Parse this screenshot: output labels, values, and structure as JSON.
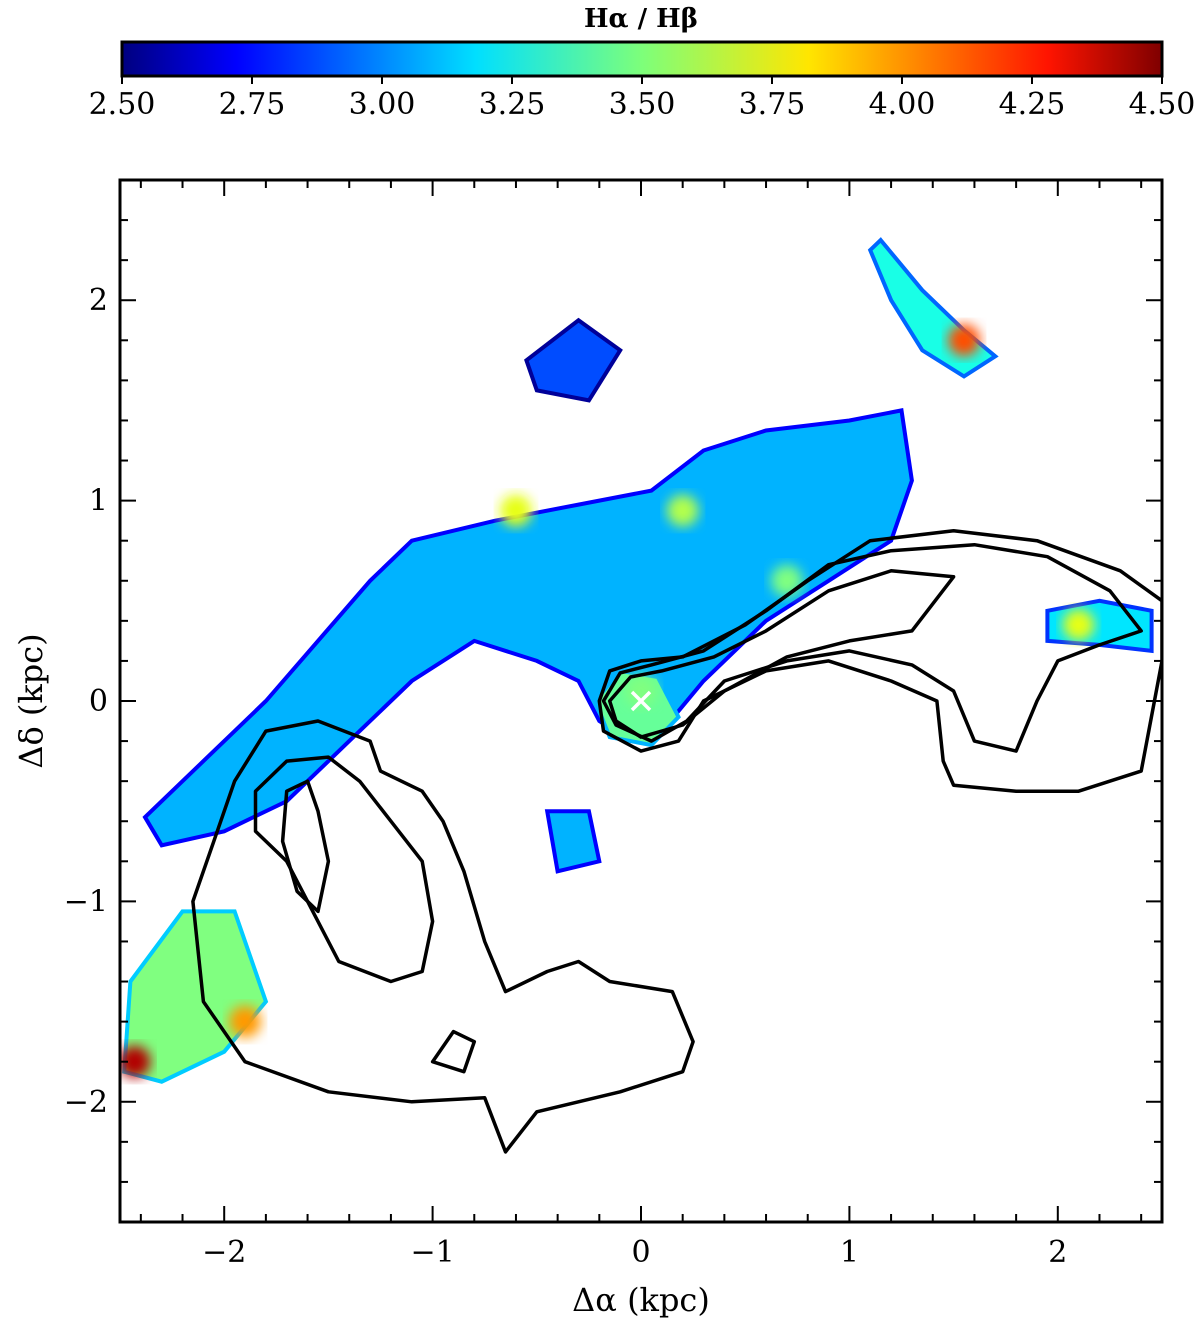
{
  "chart_data": {
    "type": "heatmap",
    "title": "",
    "colorbar": {
      "label": "Hα / Hβ",
      "range": [
        2.5,
        4.5
      ],
      "ticks": [
        "2.50",
        "2.75",
        "3.00",
        "3.25",
        "3.50",
        "3.75",
        "4.00",
        "4.25",
        "4.50"
      ],
      "colormap": "jet",
      "placement": "top"
    },
    "xlabel": "Δα (kpc)",
    "ylabel": "Δδ (kpc)",
    "xlim": [
      -2.5,
      2.5
    ],
    "ylim": [
      -2.6,
      2.6
    ],
    "xticks": [
      {
        "value": -2,
        "label": "−2"
      },
      {
        "value": -1,
        "label": "−1"
      },
      {
        "value": 0,
        "label": "0"
      },
      {
        "value": 1,
        "label": "1"
      },
      {
        "value": 2,
        "label": "2"
      }
    ],
    "yticks": [
      {
        "value": 2,
        "label": "2"
      },
      {
        "value": 1,
        "label": "1"
      },
      {
        "value": 0,
        "label": "0"
      },
      {
        "value": -1,
        "label": "−1"
      },
      {
        "value": -2,
        "label": "−2"
      }
    ],
    "grid": false,
    "center_marker": {
      "x": 0,
      "y": 0,
      "symbol": "×",
      "color": "#ffffff"
    },
    "regions": [
      {
        "name": "main-filament",
        "points": [
          [
            -2.38,
            -0.58
          ],
          [
            -2.1,
            -0.3
          ],
          [
            -1.8,
            0.0
          ],
          [
            -1.55,
            0.3
          ],
          [
            -1.3,
            0.6
          ],
          [
            -1.1,
            0.8
          ],
          [
            -0.7,
            0.9
          ],
          [
            -0.3,
            0.98
          ],
          [
            0.05,
            1.05
          ],
          [
            0.3,
            1.25
          ],
          [
            0.6,
            1.35
          ],
          [
            1.0,
            1.4
          ],
          [
            1.25,
            1.45
          ],
          [
            1.3,
            1.1
          ],
          [
            1.2,
            0.8
          ],
          [
            0.9,
            0.6
          ],
          [
            0.6,
            0.4
          ],
          [
            0.3,
            0.1
          ],
          [
            0.1,
            -0.15
          ],
          [
            -0.05,
            -0.2
          ],
          [
            -0.2,
            -0.1
          ],
          [
            -0.3,
            0.1
          ],
          [
            -0.5,
            0.2
          ],
          [
            -0.8,
            0.3
          ],
          [
            -1.1,
            0.1
          ],
          [
            -1.4,
            -0.2
          ],
          [
            -1.7,
            -0.5
          ],
          [
            -2.0,
            -0.65
          ],
          [
            -2.3,
            -0.72
          ]
        ],
        "value": 3.1
      },
      {
        "name": "nucleus",
        "points": [
          [
            -0.22,
            0.0
          ],
          [
            -0.1,
            0.15
          ],
          [
            0.08,
            0.12
          ],
          [
            0.18,
            -0.08
          ],
          [
            0.05,
            -0.22
          ],
          [
            -0.15,
            -0.18
          ]
        ],
        "value": 3.45
      },
      {
        "name": "upper-right-knot",
        "points": [
          [
            1.15,
            2.3
          ],
          [
            1.35,
            2.05
          ],
          [
            1.55,
            1.85
          ],
          [
            1.7,
            1.72
          ],
          [
            1.55,
            1.62
          ],
          [
            1.35,
            1.75
          ],
          [
            1.2,
            2.0
          ],
          [
            1.1,
            2.25
          ]
        ],
        "value": 3.3
      },
      {
        "name": "right-knots",
        "points": [
          [
            1.95,
            0.45
          ],
          [
            2.2,
            0.5
          ],
          [
            2.45,
            0.45
          ],
          [
            2.45,
            0.25
          ],
          [
            2.2,
            0.28
          ],
          [
            1.95,
            0.3
          ]
        ],
        "value": 3.2
      },
      {
        "name": "lower-left-clump",
        "points": [
          [
            -2.45,
            -1.4
          ],
          [
            -2.2,
            -1.05
          ],
          [
            -1.95,
            -1.05
          ],
          [
            -1.8,
            -1.5
          ],
          [
            -2.0,
            -1.75
          ],
          [
            -2.3,
            -1.9
          ],
          [
            -2.48,
            -1.85
          ]
        ],
        "value": 3.5
      },
      {
        "name": "upper-islands",
        "points": [
          [
            -0.55,
            1.7
          ],
          [
            -0.3,
            1.9
          ],
          [
            -0.1,
            1.75
          ],
          [
            -0.25,
            1.5
          ],
          [
            -0.5,
            1.55
          ]
        ],
        "value": 2.9
      },
      {
        "name": "small-south-knot",
        "points": [
          [
            -0.45,
            -0.55
          ],
          [
            -0.25,
            -0.55
          ],
          [
            -0.2,
            -0.8
          ],
          [
            -0.4,
            -0.85
          ]
        ],
        "value": 3.1
      }
    ],
    "hotspots": [
      {
        "x": -2.43,
        "y": -1.8,
        "value": 4.4
      },
      {
        "x": 1.55,
        "y": 1.8,
        "value": 4.1
      },
      {
        "x": 2.1,
        "y": 0.38,
        "value": 3.7
      },
      {
        "x": -1.9,
        "y": -1.6,
        "value": 3.95
      },
      {
        "x": 0.0,
        "y": 0.05,
        "value": 3.5
      },
      {
        "x": -0.6,
        "y": 0.95,
        "value": 3.7
      },
      {
        "x": 0.2,
        "y": 0.95,
        "value": 3.6
      },
      {
        "x": 0.7,
        "y": 0.6,
        "value": 3.5
      }
    ],
    "contours": [
      {
        "name": "jet-contour-outer",
        "points": [
          [
            -0.2,
            0.0
          ],
          [
            -0.15,
            0.15
          ],
          [
            0.0,
            0.2
          ],
          [
            0.2,
            0.22
          ],
          [
            0.5,
            0.38
          ],
          [
            0.8,
            0.6
          ],
          [
            1.1,
            0.8
          ],
          [
            1.5,
            0.85
          ],
          [
            1.9,
            0.8
          ],
          [
            2.3,
            0.65
          ],
          [
            2.5,
            0.5
          ],
          [
            2.5,
            0.2
          ],
          [
            2.4,
            -0.35
          ],
          [
            2.1,
            -0.45
          ],
          [
            1.8,
            -0.45
          ],
          [
            1.5,
            -0.42
          ],
          [
            1.45,
            -0.3
          ],
          [
            1.42,
            0.0
          ],
          [
            1.2,
            0.1
          ],
          [
            0.9,
            0.2
          ],
          [
            0.6,
            0.15
          ],
          [
            0.3,
            0.0
          ],
          [
            0.18,
            -0.2
          ],
          [
            0.0,
            -0.25
          ],
          [
            -0.18,
            -0.15
          ]
        ]
      },
      {
        "name": "jet-contour-mid",
        "points": [
          [
            -0.18,
            0.0
          ],
          [
            -0.1,
            0.14
          ],
          [
            0.05,
            0.18
          ],
          [
            0.3,
            0.25
          ],
          [
            0.6,
            0.45
          ],
          [
            0.9,
            0.68
          ],
          [
            1.2,
            0.75
          ],
          [
            1.6,
            0.78
          ],
          [
            1.95,
            0.72
          ],
          [
            2.25,
            0.55
          ],
          [
            2.4,
            0.35
          ],
          [
            2.2,
            0.28
          ],
          [
            2.0,
            0.2
          ],
          [
            1.9,
            0.0
          ],
          [
            1.8,
            -0.25
          ],
          [
            1.6,
            -0.2
          ],
          [
            1.5,
            0.05
          ],
          [
            1.3,
            0.18
          ],
          [
            1.0,
            0.25
          ],
          [
            0.7,
            0.2
          ],
          [
            0.4,
            0.1
          ],
          [
            0.22,
            -0.1
          ],
          [
            0.05,
            -0.2
          ],
          [
            -0.12,
            -0.12
          ]
        ]
      },
      {
        "name": "jet-contour-inner",
        "points": [
          [
            -0.15,
            0.0
          ],
          [
            -0.05,
            0.12
          ],
          [
            0.1,
            0.15
          ],
          [
            0.35,
            0.22
          ],
          [
            0.6,
            0.35
          ],
          [
            0.9,
            0.55
          ],
          [
            1.2,
            0.65
          ],
          [
            1.5,
            0.62
          ],
          [
            1.3,
            0.35
          ],
          [
            1.0,
            0.3
          ],
          [
            0.7,
            0.22
          ],
          [
            0.4,
            0.05
          ],
          [
            0.2,
            -0.12
          ],
          [
            0.0,
            -0.18
          ],
          [
            -0.12,
            -0.1
          ]
        ]
      },
      {
        "name": "lobe-contour-outer",
        "points": [
          [
            -1.95,
            -0.4
          ],
          [
            -1.8,
            -0.15
          ],
          [
            -1.55,
            -0.1
          ],
          [
            -1.3,
            -0.2
          ],
          [
            -1.25,
            -0.35
          ],
          [
            -1.05,
            -0.45
          ],
          [
            -0.95,
            -0.6
          ],
          [
            -0.85,
            -0.85
          ],
          [
            -0.75,
            -1.2
          ],
          [
            -0.65,
            -1.45
          ],
          [
            -0.45,
            -1.35
          ],
          [
            -0.3,
            -1.3
          ],
          [
            -0.15,
            -1.4
          ],
          [
            0.15,
            -1.45
          ],
          [
            0.25,
            -1.7
          ],
          [
            0.2,
            -1.85
          ],
          [
            -0.1,
            -1.95
          ],
          [
            -0.5,
            -2.05
          ],
          [
            -0.65,
            -2.25
          ],
          [
            -0.75,
            -1.98
          ],
          [
            -1.1,
            -2.0
          ],
          [
            -1.5,
            -1.95
          ],
          [
            -1.9,
            -1.8
          ],
          [
            -2.1,
            -1.5
          ],
          [
            -2.15,
            -1.0
          ],
          [
            -2.05,
            -0.7
          ]
        ]
      },
      {
        "name": "lobe-contour-mid",
        "points": [
          [
            -1.85,
            -0.45
          ],
          [
            -1.7,
            -0.3
          ],
          [
            -1.5,
            -0.28
          ],
          [
            -1.35,
            -0.4
          ],
          [
            -1.2,
            -0.6
          ],
          [
            -1.05,
            -0.8
          ],
          [
            -1.0,
            -1.1
          ],
          [
            -1.05,
            -1.35
          ],
          [
            -1.2,
            -1.4
          ],
          [
            -1.45,
            -1.3
          ],
          [
            -1.6,
            -1.0
          ],
          [
            -1.7,
            -0.8
          ],
          [
            -1.85,
            -0.65
          ]
        ]
      },
      {
        "name": "lobe-contour-inner",
        "points": [
          [
            -1.7,
            -0.45
          ],
          [
            -1.6,
            -0.4
          ],
          [
            -1.55,
            -0.55
          ],
          [
            -1.5,
            -0.8
          ],
          [
            -1.55,
            -1.05
          ],
          [
            -1.65,
            -0.95
          ],
          [
            -1.72,
            -0.7
          ]
        ]
      },
      {
        "name": "lobe-island",
        "points": [
          [
            -1.0,
            -1.8
          ],
          [
            -0.9,
            -1.65
          ],
          [
            -0.8,
            -1.7
          ],
          [
            -0.85,
            -1.85
          ]
        ]
      }
    ]
  }
}
